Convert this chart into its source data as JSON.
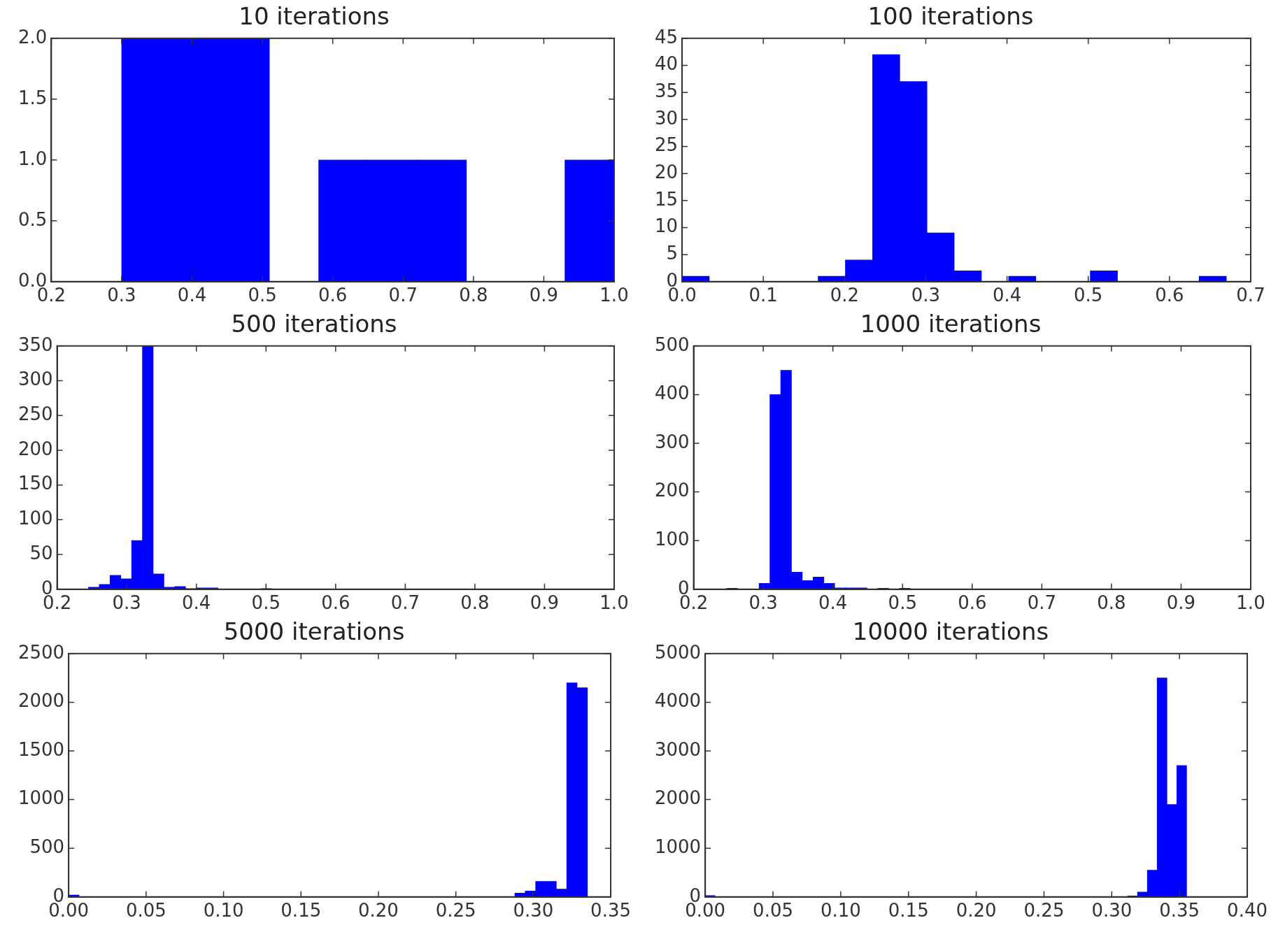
{
  "chart_data": [
    {
      "type": "histogram",
      "title": "10 iterations",
      "color": "#0000ff",
      "bins": [
        0.3,
        0.37,
        0.44,
        0.51,
        0.58,
        0.65,
        0.72,
        0.79,
        0.86,
        0.93,
        1.0
      ],
      "values": [
        2,
        2,
        2,
        0,
        1,
        1,
        1,
        0,
        0,
        1
      ],
      "xlim": [
        0.2,
        1.0
      ],
      "ylim": [
        0,
        2
      ],
      "xticks": [
        0.2,
        0.3,
        0.4,
        0.5,
        0.6,
        0.7,
        0.8,
        0.9,
        {
          "value": 1,
          "label": "1.0"
        }
      ],
      "yticks": [
        {
          "value": 0,
          "label": "0.0"
        },
        0.5,
        {
          "value": 1,
          "label": "1.0"
        },
        1.5,
        {
          "value": 2,
          "label": "2.0"
        }
      ]
    },
    {
      "type": "histogram",
      "title": "100 iterations",
      "color": "#0000ff",
      "bins": [
        0,
        0.0335,
        0.067,
        0.1005,
        0.134,
        0.1675,
        0.201,
        0.2345,
        0.268,
        0.3015,
        0.335,
        0.3685,
        0.402,
        0.4355,
        0.469,
        0.5025,
        0.536,
        0.5695,
        0.603,
        0.6365,
        0.67
      ],
      "values": [
        1,
        0,
        0,
        0,
        0,
        1,
        4,
        42,
        37,
        9,
        2,
        0,
        1,
        0,
        0,
        2,
        0,
        0,
        0,
        1
      ],
      "xlim": [
        0,
        0.7
      ],
      "ylim": [
        0,
        45
      ],
      "xticks": [
        {
          "value": 0,
          "label": "0.0"
        },
        0.1,
        0.2,
        0.3,
        0.4,
        0.5,
        0.6,
        0.7
      ],
      "yticks": [
        0,
        5,
        10,
        15,
        20,
        25,
        30,
        35,
        40,
        45
      ]
    },
    {
      "type": "histogram",
      "title": "500 iterations",
      "color": "#0000ff",
      "bins": [
        0.245,
        0.2605,
        0.276,
        0.2915,
        0.307,
        0.3225,
        0.338,
        0.3535,
        0.369,
        0.3845,
        0.4,
        0.4155,
        0.431,
        0.4465,
        0.462,
        0.4775,
        0.493,
        0.5085
      ],
      "values": [
        3,
        7,
        20,
        15,
        70,
        350,
        22,
        3,
        4,
        1,
        2,
        2,
        0,
        0,
        0,
        0,
        1
      ],
      "xlim": [
        0.2,
        1.0
      ],
      "ylim": [
        0,
        350
      ],
      "xticks": [
        0.2,
        0.3,
        0.4,
        0.5,
        0.6,
        0.7,
        0.8,
        0.9,
        {
          "value": 1,
          "label": "1.0"
        }
      ],
      "yticks": [
        0,
        50,
        100,
        150,
        200,
        250,
        300,
        350
      ]
    },
    {
      "type": "histogram",
      "title": "1000 iterations",
      "color": "#0000ff",
      "bins": [
        0.2475,
        0.263,
        0.2785,
        0.294,
        0.3095,
        0.325,
        0.3405,
        0.356,
        0.3715,
        0.387,
        0.4025,
        0.418,
        0.4335,
        0.449,
        0.4645,
        0.48,
        0.4955,
        0.511
      ],
      "values": [
        2,
        0,
        0,
        12,
        400,
        450,
        35,
        18,
        25,
        12,
        3,
        3,
        3,
        0,
        2,
        0,
        2
      ],
      "xlim": [
        0.2,
        1.0
      ],
      "ylim": [
        0,
        500
      ],
      "xticks": [
        0.2,
        0.3,
        0.4,
        0.5,
        0.6,
        0.7,
        0.8,
        0.9,
        {
          "value": 1,
          "label": "1.0"
        }
      ],
      "yticks": [
        0,
        100,
        200,
        300,
        400,
        500
      ]
    },
    {
      "type": "histogram",
      "title": "5000 iterations",
      "color": "#0000ff",
      "bins": [
        0,
        0.0067,
        0.0134,
        0.0201,
        0.0268,
        0.0335,
        0.0402,
        0.0469,
        0.0536,
        0.0603,
        0.067,
        0.0737,
        0.0804,
        0.0871,
        0.0938,
        0.1005,
        0.1072,
        0.1139,
        0.1206,
        0.1273,
        0.134,
        0.1407,
        0.1474,
        0.1541,
        0.1608,
        0.1675,
        0.1742,
        0.1809,
        0.1876,
        0.1943,
        0.201,
        0.2077,
        0.2144,
        0.2211,
        0.2278,
        0.2345,
        0.2412,
        0.2479,
        0.2546,
        0.2613,
        0.268,
        0.2747,
        0.2814,
        0.2881,
        0.2948,
        0.3015,
        0.3082,
        0.3149,
        0.3216,
        0.3283,
        0.335
      ],
      "values": [
        20,
        0,
        0,
        0,
        0,
        0,
        0,
        0,
        0,
        0,
        0,
        0,
        0,
        0,
        0,
        0,
        0,
        0,
        0,
        0,
        0,
        0,
        0,
        0,
        0,
        0,
        0,
        0,
        0,
        0,
        0,
        0,
        0,
        0,
        0,
        0,
        0,
        0,
        0,
        0,
        0,
        0,
        0,
        40,
        60,
        160,
        160,
        80,
        2200,
        2150
      ],
      "xlim": [
        0,
        0.35
      ],
      "ylim": [
        0,
        2500
      ],
      "xticks": [
        {
          "value": 0,
          "label": "0.00"
        },
        0.05,
        {
          "value": 0.1,
          "label": "0.10"
        },
        0.15,
        {
          "value": 0.2,
          "label": "0.20"
        },
        0.25,
        {
          "value": 0.3,
          "label": "0.30"
        },
        0.35
      ],
      "yticks": [
        0,
        500,
        1000,
        1500,
        2000,
        2500
      ]
    },
    {
      "type": "histogram",
      "title": "10000 iterations",
      "color": "#0000ff",
      "bins": [
        0,
        0.00725,
        0.0145,
        0.02175,
        0.029,
        0.03625,
        0.0435,
        0.05075,
        0.058,
        0.06525,
        0.0725,
        0.07975,
        0.087,
        0.09425,
        0.1015,
        0.10875,
        0.116,
        0.12325,
        0.1305,
        0.13775,
        0.145,
        0.15225,
        0.1595,
        0.16675,
        0.174,
        0.18125,
        0.1885,
        0.19575,
        0.203,
        0.21025,
        0.2175,
        0.22475,
        0.232,
        0.23925,
        0.2465,
        0.25375,
        0.261,
        0.26825,
        0.2755,
        0.28275,
        0.29,
        0.29725,
        0.3045,
        0.31175,
        0.319,
        0.32625,
        0.3335,
        0.34075,
        0.348,
        0.35525
      ],
      "values": [
        30,
        0,
        0,
        0,
        0,
        0,
        0,
        0,
        0,
        0,
        0,
        0,
        0,
        0,
        0,
        0,
        0,
        0,
        0,
        0,
        0,
        0,
        0,
        0,
        0,
        0,
        0,
        0,
        0,
        0,
        0,
        0,
        0,
        0,
        0,
        0,
        0,
        0,
        0,
        0,
        0,
        0,
        null,
        20,
        100,
        550,
        4500,
        1900,
        2700
      ],
      "xlim": [
        0,
        0.4
      ],
      "ylim": [
        0,
        5000
      ],
      "xticks": [
        {
          "value": 0,
          "label": "0.00"
        },
        0.05,
        {
          "value": 0.1,
          "label": "0.10"
        },
        0.15,
        {
          "value": 0.2,
          "label": "0.20"
        },
        0.25,
        {
          "value": 0.3,
          "label": "0.30"
        },
        0.35,
        {
          "value": 0.4,
          "label": "0.40"
        }
      ],
      "yticks": [
        0,
        1000,
        2000,
        3000,
        4000,
        5000
      ]
    }
  ]
}
